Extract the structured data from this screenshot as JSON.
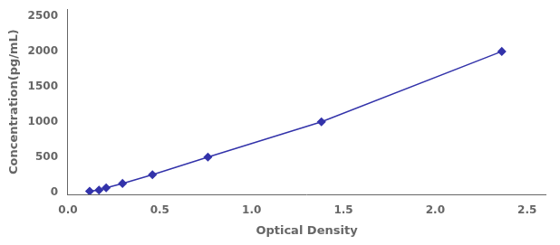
{
  "chart_data": {
    "type": "line",
    "x": [
      0.118,
      0.169,
      0.208,
      0.297,
      0.46,
      0.762,
      1.38,
      2.362
    ],
    "values": [
      15.6,
      31.25,
      62.5,
      125,
      250,
      500,
      1000,
      2000
    ],
    "color": "#3333AA",
    "marker": "diamond",
    "line_style": "solid",
    "xlabel": "Optical Density",
    "ylabel": "Concentration(pg/mL)",
    "xlim": [
      0.0,
      2.6
    ],
    "ylim": [
      -30,
      2600
    ],
    "xticks": [
      {
        "value": 0,
        "label": "0.0"
      },
      0.5,
      {
        "value": 1,
        "label": "1.0"
      },
      1.5,
      {
        "value": 2,
        "label": "2.0"
      },
      2.5
    ],
    "yticks": [
      0,
      500,
      1000,
      1500,
      2000,
      2500
    ],
    "grid": false
  }
}
